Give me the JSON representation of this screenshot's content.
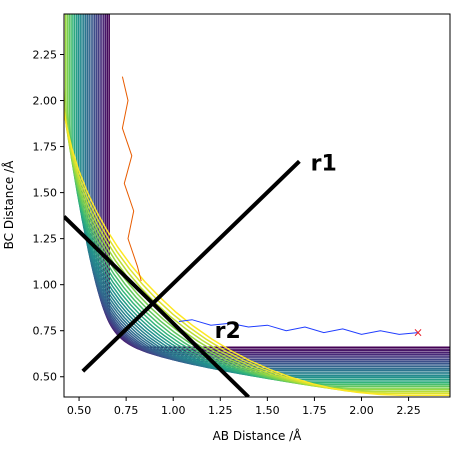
{
  "chart_data": {
    "type": "contour",
    "title": "",
    "xlabel": "AB Distance /Å",
    "ylabel": "BC Distance /Å",
    "xlim": [
      0.42,
      2.47
    ],
    "ylim": [
      0.39,
      2.47
    ],
    "x_ticks": [
      0.5,
      0.75,
      1.0,
      1.25,
      1.5,
      1.75,
      2.0,
      2.25
    ],
    "y_ticks": [
      0.5,
      0.75,
      1.0,
      1.25,
      1.5,
      1.75,
      2.0,
      2.25
    ],
    "x_tick_labels": [
      "0.50",
      "0.75",
      "1.00",
      "1.25",
      "1.50",
      "1.75",
      "2.00",
      "2.25"
    ],
    "y_tick_labels": [
      "0.50",
      "0.75",
      "1.00",
      "1.25",
      "1.50",
      "1.75",
      "2.00",
      "2.25"
    ],
    "colormap": "viridis",
    "saddle_point": [
      0.9,
      0.9
    ],
    "annotations": [
      {
        "text": "r1",
        "x": 1.73,
        "y": 1.62,
        "line_to": [
          0.52,
          0.53
        ],
        "line_end": [
          1.67,
          1.67
        ]
      },
      {
        "text": "r2",
        "x": 1.22,
        "y": 0.71,
        "line_to": [
          0.42,
          1.37
        ],
        "line_end": [
          1.4,
          0.39
        ]
      }
    ],
    "trajectories": [
      {
        "name": "",
        "color": "#1f3cff",
        "points": [
          [
            2.3,
            0.74
          ],
          [
            2.2,
            0.73
          ],
          [
            2.1,
            0.75
          ],
          [
            2.0,
            0.73
          ],
          [
            1.9,
            0.76
          ],
          [
            1.8,
            0.74
          ],
          [
            1.7,
            0.77
          ],
          [
            1.6,
            0.75
          ],
          [
            1.5,
            0.78
          ],
          [
            1.4,
            0.77
          ],
          [
            1.3,
            0.79
          ],
          [
            1.2,
            0.78
          ],
          [
            1.1,
            0.81
          ],
          [
            1.03,
            0.8
          ]
        ]
      },
      {
        "name": "",
        "color": "#e85c00",
        "points": [
          [
            0.73,
            2.13
          ],
          [
            0.76,
            2.0
          ],
          [
            0.73,
            1.85
          ],
          [
            0.78,
            1.7
          ],
          [
            0.74,
            1.55
          ],
          [
            0.79,
            1.4
          ],
          [
            0.76,
            1.25
          ],
          [
            0.81,
            1.1
          ],
          [
            0.83,
            1.02
          ]
        ]
      }
    ],
    "end_marker": {
      "symbol": "×",
      "x": 2.3,
      "y": 0.74,
      "color": "#e8212b"
    }
  }
}
